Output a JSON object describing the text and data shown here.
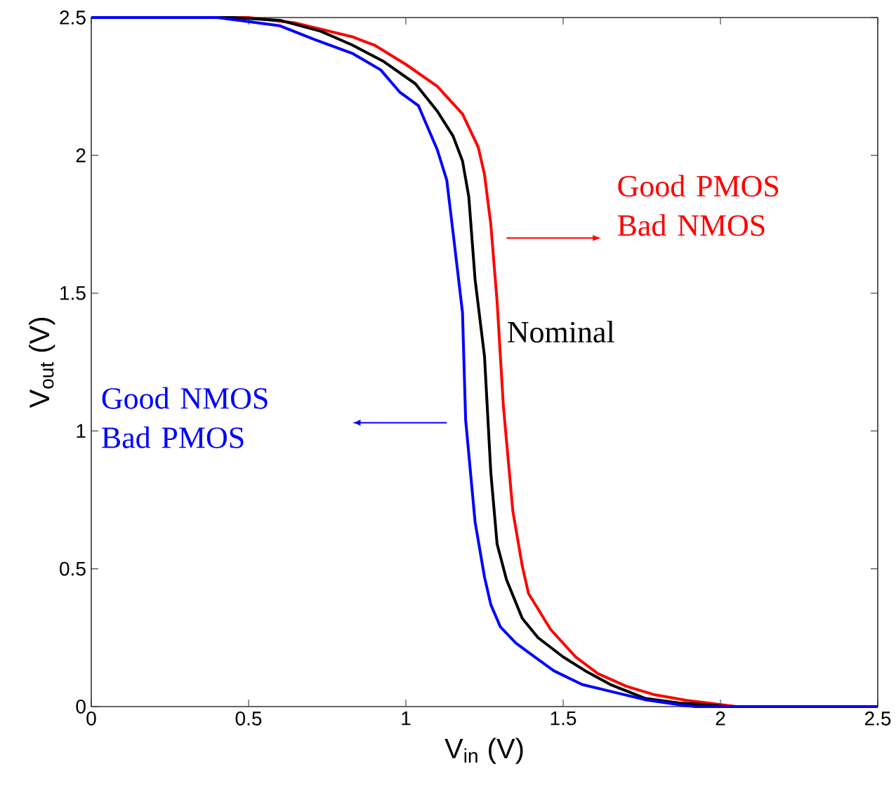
{
  "chart_data": {
    "type": "line",
    "xlabel": "V$_{in}$ (V)",
    "ylabel": "V$_{out}$ (V)",
    "xlim": [
      0,
      2.5
    ],
    "ylim": [
      0,
      2.5
    ],
    "xticks": [
      0,
      0.5,
      1,
      1.5,
      2,
      2.5
    ],
    "yticks": [
      0,
      0.5,
      1,
      1.5,
      2,
      2.5
    ],
    "grid": false,
    "marker": "none",
    "line_style": "solid",
    "series": [
      {
        "name": "Good PMOS Bad NMOS",
        "color": "#ff0000",
        "x": [
          0,
          0.5,
          0.65,
          0.83,
          0.9,
          1.0,
          1.1,
          1.18,
          1.23,
          1.25,
          1.27,
          1.29,
          1.31,
          1.34,
          1.37,
          1.39,
          1.46,
          1.54,
          1.61,
          1.7,
          1.79,
          1.89,
          1.98,
          2.05,
          2.5
        ],
        "values": [
          2.5,
          2.5,
          2.48,
          2.43,
          2.4,
          2.33,
          2.25,
          2.15,
          2.03,
          1.93,
          1.75,
          1.47,
          1.09,
          0.71,
          0.51,
          0.41,
          0.28,
          0.18,
          0.12,
          0.074,
          0.043,
          0.023,
          0.01,
          0,
          0
        ]
      },
      {
        "name": "Nominal",
        "color": "#000000",
        "x": [
          0,
          0.45,
          0.6,
          0.73,
          0.83,
          0.93,
          1.03,
          1.1,
          1.15,
          1.18,
          1.2,
          1.22,
          1.25,
          1.27,
          1.29,
          1.32,
          1.37,
          1.42,
          1.5,
          1.57,
          1.65,
          1.76,
          1.87,
          1.94,
          2.02,
          2.5
        ],
        "values": [
          2.5,
          2.5,
          2.49,
          2.45,
          2.4,
          2.34,
          2.26,
          2.16,
          2.07,
          1.98,
          1.85,
          1.55,
          1.27,
          0.85,
          0.59,
          0.46,
          0.32,
          0.25,
          0.18,
          0.13,
          0.08,
          0.03,
          0.013,
          0.008,
          0,
          0
        ]
      },
      {
        "name": "Good NMOS Bad PMOS",
        "color": "#0000ff",
        "x": [
          0,
          0.4,
          0.47,
          0.6,
          0.71,
          0.83,
          0.92,
          0.98,
          1.04,
          1.1,
          1.13,
          1.15,
          1.18,
          1.19,
          1.22,
          1.25,
          1.27,
          1.3,
          1.35,
          1.41,
          1.47,
          1.56,
          1.67,
          1.76,
          1.88,
          1.92,
          2.5
        ],
        "values": [
          2.5,
          2.5,
          2.49,
          2.47,
          2.42,
          2.37,
          2.31,
          2.23,
          2.18,
          2.02,
          1.91,
          1.72,
          1.43,
          1.04,
          0.67,
          0.47,
          0.37,
          0.29,
          0.23,
          0.18,
          0.13,
          0.08,
          0.05,
          0.025,
          0.005,
          0,
          0
        ]
      }
    ]
  }
}
